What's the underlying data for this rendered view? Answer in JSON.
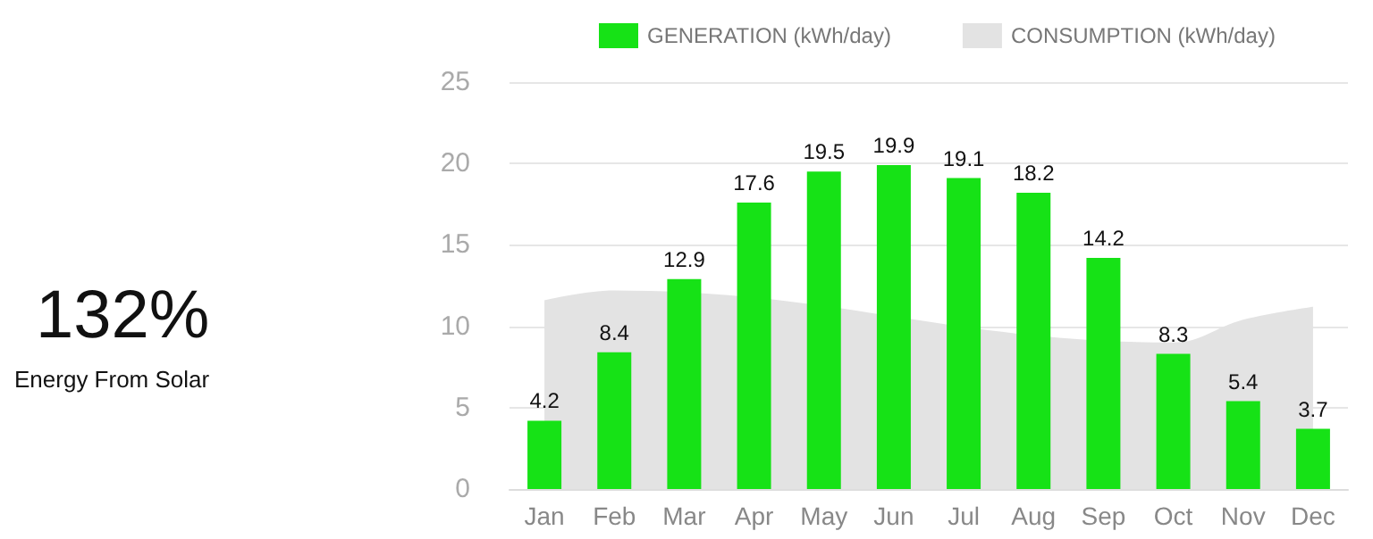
{
  "chart_data": {
    "type": "bar",
    "categories": [
      "Jan",
      "Feb",
      "Mar",
      "Apr",
      "May",
      "Jun",
      "Jul",
      "Aug",
      "Sep",
      "Oct",
      "Nov",
      "Dec"
    ],
    "series": [
      {
        "name": "GENERATION (kWh/day)",
        "color": "#16e216",
        "values": [
          4.2,
          8.4,
          12.9,
          17.6,
          19.5,
          19.9,
          19.1,
          18.2,
          14.2,
          8.3,
          5.4,
          3.7
        ],
        "data_labels": true
      },
      {
        "name": "CONSUMPTION (kWh/day)",
        "type": "area",
        "color": "#e3e3e3",
        "values": [
          11.6,
          12.2,
          null,
          null,
          null,
          null,
          null,
          null,
          null,
          9.0,
          10.4,
          11.2
        ]
      }
    ],
    "ylim": [
      0,
      25
    ],
    "yticks": [
      0,
      5,
      10,
      15,
      20,
      25
    ],
    "grid": "y",
    "legend": "top",
    "annotations": [
      "132%",
      "Energy From Solar"
    ]
  }
}
